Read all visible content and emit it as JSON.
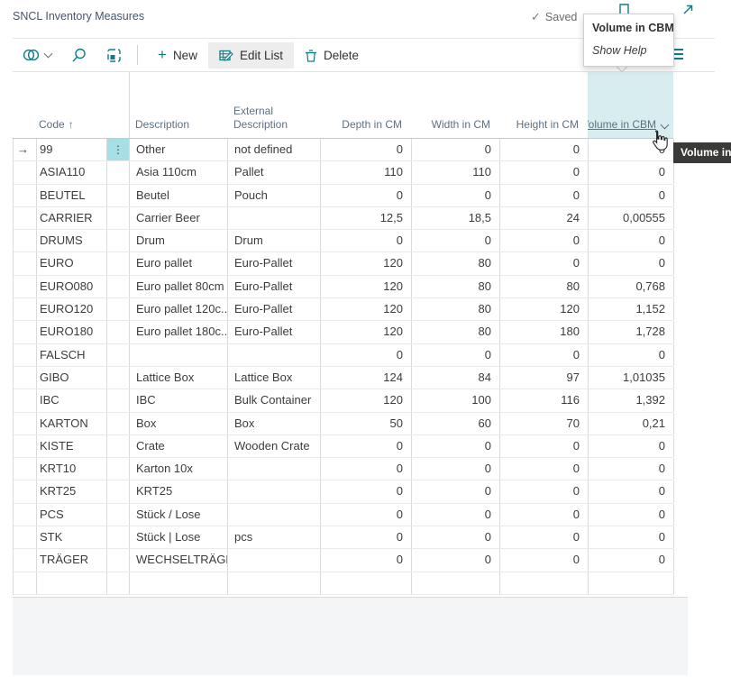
{
  "page": {
    "title": "SNCL Inventory Measures",
    "saved_label": "Saved"
  },
  "actionbar": {
    "new_label": "New",
    "edit_label": "Edit List",
    "delete_label": "Delete"
  },
  "hover_tooltip": {
    "title": "Volume in CBM",
    "help_label": "Show Help"
  },
  "cursor_tooltip": {
    "text": "Volume in CBM"
  },
  "icons": {
    "check": "✓",
    "plus": "+",
    "arrow_right": "→",
    "ellipsis_v": "⋮",
    "sort_asc": "↑"
  },
  "table": {
    "columns": [
      "Code",
      "Description",
      "External Description",
      "Depth in CM",
      "Width in CM",
      "Height in CM",
      "Volume in CBM"
    ],
    "sort_indicator": "↑",
    "current_row_index": 0,
    "rows": [
      [
        "99",
        "Other",
        "not defined",
        "0",
        "0",
        "0",
        "0"
      ],
      [
        "ASIA110",
        "Asia 110cm",
        "Pallet",
        "110",
        "110",
        "0",
        "0"
      ],
      [
        "BEUTEL",
        "Beutel",
        "Pouch",
        "0",
        "0",
        "0",
        "0"
      ],
      [
        "CARRIER",
        "Carrier Beer",
        "",
        "12,5",
        "18,5",
        "24",
        "0,00555"
      ],
      [
        "DRUMS",
        "Drum",
        "Drum",
        "0",
        "0",
        "0",
        "0"
      ],
      [
        "EURO",
        "Euro pallet",
        "Euro-Pallet",
        "120",
        "80",
        "0",
        "0"
      ],
      [
        "EURO080",
        "Euro pallet 80cm",
        "Euro-Pallet",
        "120",
        "80",
        "80",
        "0,768"
      ],
      [
        "EURO120",
        "Euro pallet 120c...",
        "Euro-Pallet",
        "120",
        "80",
        "120",
        "1,152"
      ],
      [
        "EURO180",
        "Euro pallet 180c...",
        "Euro-Pallet",
        "120",
        "80",
        "180",
        "1,728"
      ],
      [
        "FALSCH",
        "",
        "",
        "0",
        "0",
        "0",
        "0"
      ],
      [
        "GIBO",
        "Lattice Box",
        "Lattice Box",
        "124",
        "84",
        "97",
        "1,01035"
      ],
      [
        "IBC",
        "IBC",
        "Bulk Container",
        "120",
        "100",
        "116",
        "1,392"
      ],
      [
        "KARTON",
        "Box",
        "Box",
        "50",
        "60",
        "70",
        "0,21"
      ],
      [
        "KISTE",
        "Crate",
        "Wooden Crate",
        "0",
        "0",
        "0",
        "0"
      ],
      [
        "KRT10",
        "Karton 10x",
        "",
        "0",
        "0",
        "0",
        "0"
      ],
      [
        "KRT25",
        "KRT25",
        "",
        "0",
        "0",
        "0",
        "0"
      ],
      [
        "PCS",
        "Stück / Lose",
        "",
        "0",
        "0",
        "0",
        "0"
      ],
      [
        "STK",
        "Stück | Lose",
        "pcs",
        "0",
        "0",
        "0",
        "0"
      ],
      [
        "TRÄGER",
        "WECHSELTRÄGER",
        "",
        "0",
        "0",
        "0",
        "0"
      ],
      [
        "",
        "",
        "",
        "",
        "",
        "",
        ""
      ]
    ]
  }
}
